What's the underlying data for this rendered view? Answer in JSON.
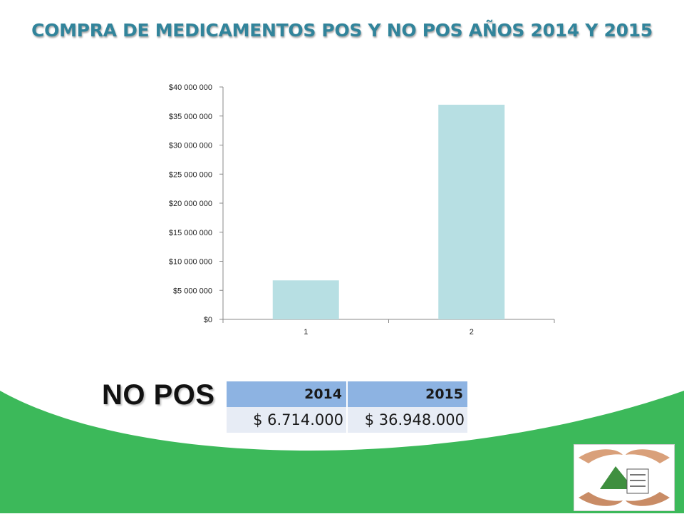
{
  "title": "COMPRA DE MEDICAMENTOS POS Y NO POS AÑOS 2014 Y 2015",
  "chart_data": {
    "type": "bar",
    "categories": [
      "1",
      "2"
    ],
    "values": [
      6714000,
      36948000
    ],
    "ylim": [
      0,
      40000000
    ],
    "yticks": [
      0,
      5000000,
      10000000,
      15000000,
      20000000,
      25000000,
      30000000,
      35000000,
      40000000
    ],
    "ytick_labels": [
      "$0",
      "$5 000 000",
      "$10 000 000",
      "$15 000 000",
      "$20 000 000",
      "$25 000 000",
      "$30 000 000",
      "$35 000 000",
      "$40 000 000"
    ],
    "grid": false,
    "legend": "none",
    "bar_color": "#b7dfe3"
  },
  "section_label": "NO POS",
  "table": {
    "headers": [
      "2014",
      "2015"
    ],
    "row": [
      "$ 6.714.000",
      "$ 36.948.000"
    ]
  },
  "logo": {
    "name": "hospital-logo",
    "icon": "hands-and-house-logo"
  },
  "colors": {
    "title": "#31849b",
    "wave": "#3cb95a",
    "table_header": "#8db3e2",
    "table_cell": "#e7ecf5"
  }
}
